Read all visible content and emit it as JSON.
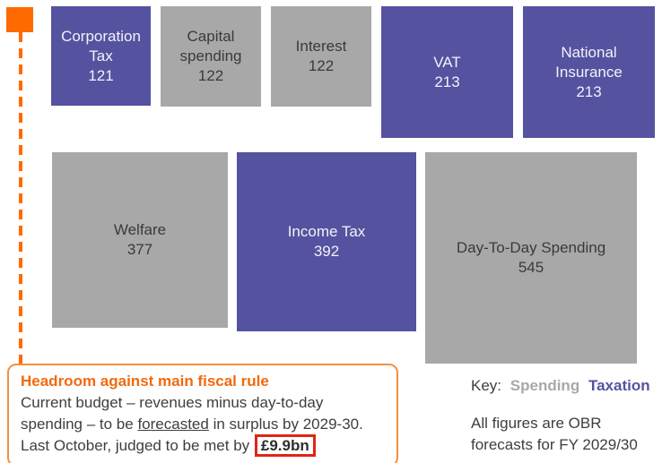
{
  "colors": {
    "taxation": "#5552A0",
    "spending": "#A8A8A8",
    "accent_orange": "#FF6A00",
    "callout_border": "#F78F3F",
    "callout_title": "#F2690D",
    "highlight_red": "#E02417",
    "ink": "#3E3E3E",
    "block_text_dark": "#3A3A3A"
  },
  "chart_data": {
    "type": "treemap",
    "layout_note": "two top-aligned rows of squares, square side proportional to sqrt(value)",
    "categories_legend": [
      "Spending",
      "Taxation"
    ],
    "blocks": [
      {
        "label": "Corporation Tax",
        "value": 121,
        "category": "Taxation",
        "row": 0
      },
      {
        "label": "Capital spending",
        "value": 122,
        "category": "Spending",
        "row": 0
      },
      {
        "label": "Interest",
        "value": 122,
        "category": "Spending",
        "row": 0
      },
      {
        "label": "VAT",
        "value": 213,
        "category": "Taxation",
        "row": 0
      },
      {
        "label": "National Insurance",
        "value": 213,
        "category": "Taxation",
        "row": 0
      },
      {
        "label": "Welfare",
        "value": 377,
        "category": "Spending",
        "row": 1
      },
      {
        "label": "Income Tax",
        "value": 392,
        "category": "Taxation",
        "row": 1
      },
      {
        "label": "Day-To-Day Spending",
        "value": 545,
        "category": "Spending",
        "row": 1
      }
    ],
    "legend": {
      "prefix": "Key:",
      "entries": [
        {
          "label": "Spending",
          "type": "spending"
        },
        {
          "label": "Taxation",
          "type": "taxation"
        }
      ]
    },
    "footnote_lines": [
      "All figures are OBR",
      "forecasts for FY 2029/30"
    ]
  },
  "callout": {
    "title": "Headroom against main fiscal rule",
    "body_segments": [
      {
        "text": "Current budget – revenues minus day-to-day spending – to be ",
        "style": "normal"
      },
      {
        "text": "forecasted",
        "style": "underline"
      },
      {
        "text": " in surplus by 2029-30. Last October, judged to be met by ",
        "style": "normal"
      },
      {
        "text": "£9.9bn",
        "style": "boxed"
      }
    ]
  }
}
